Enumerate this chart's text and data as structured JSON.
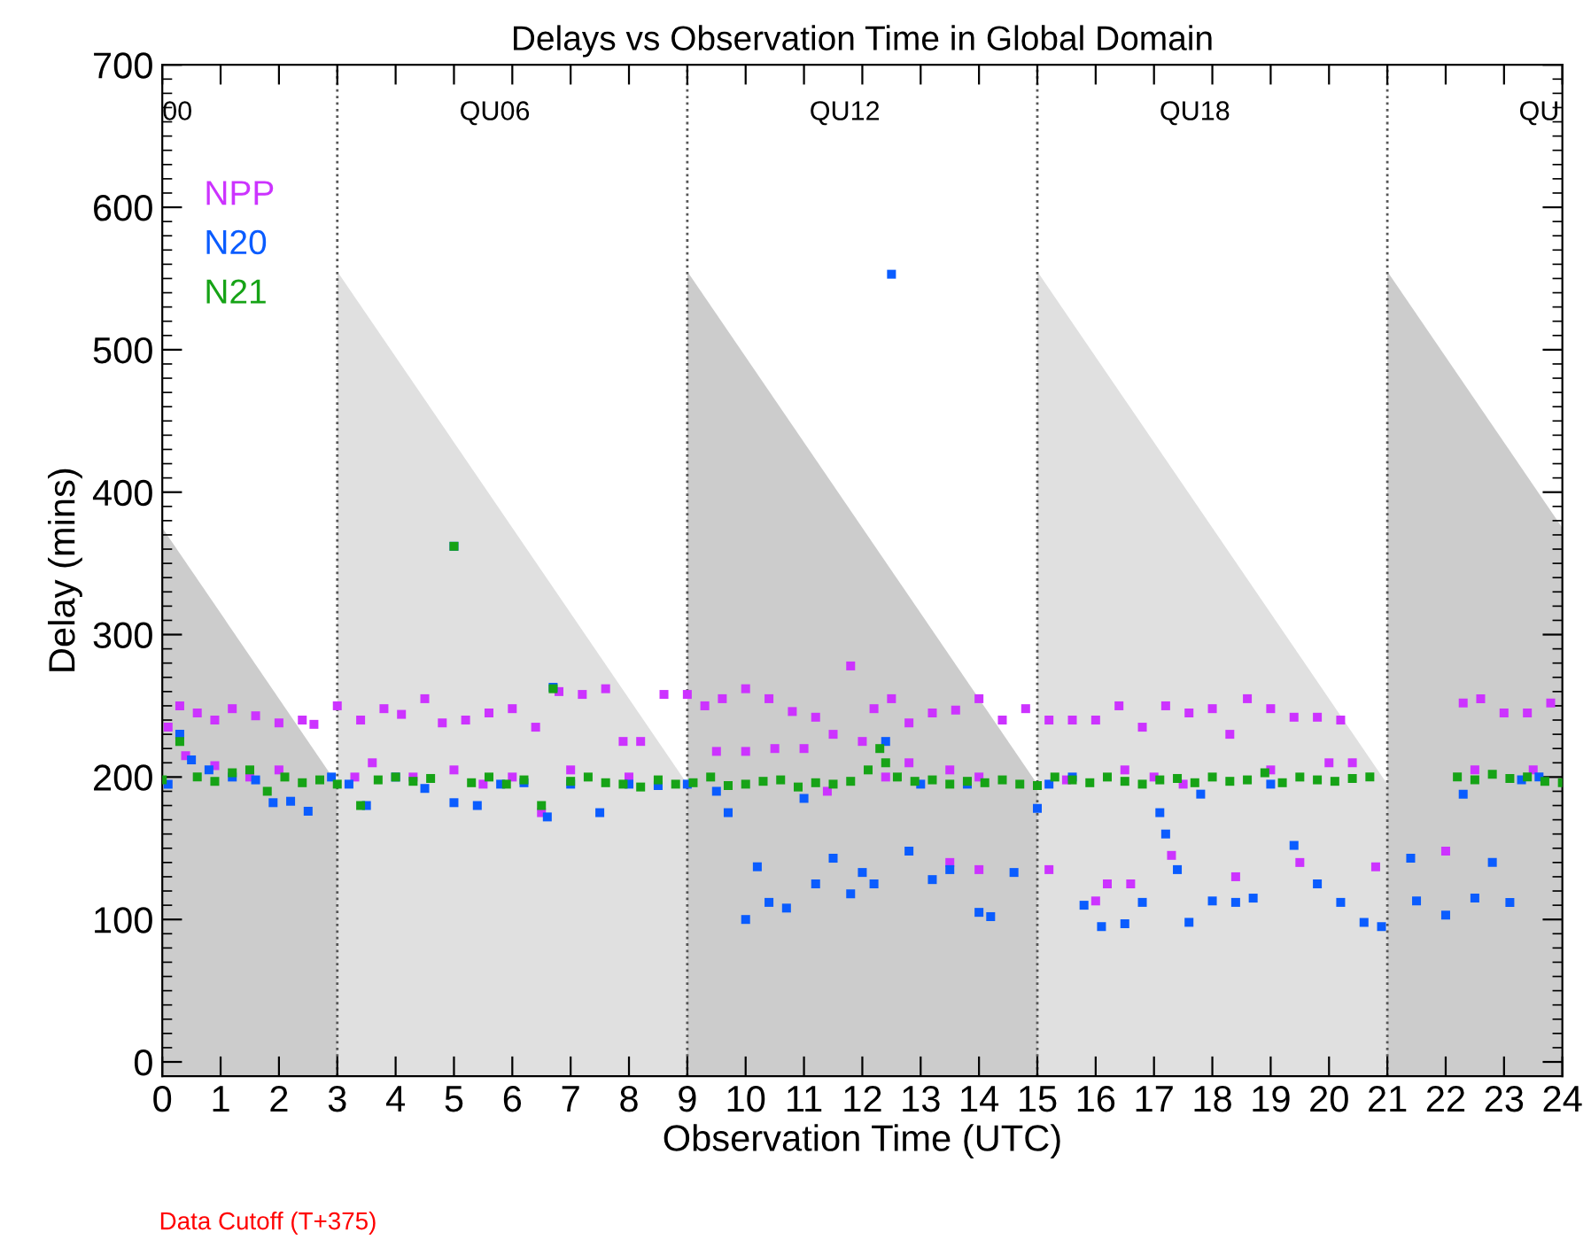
{
  "chart_data": {
    "type": "scatter",
    "title": "Delays vs Observation Time in Global Domain",
    "xlabel": "Observation Time (UTC)",
    "ylabel": "Delay (mins)",
    "xlim": [
      0,
      24
    ],
    "xticks": [
      0,
      1,
      2,
      3,
      4,
      5,
      6,
      7,
      8,
      9,
      10,
      11,
      12,
      13,
      14,
      15,
      16,
      17,
      18,
      19,
      20,
      21,
      22,
      23,
      24
    ],
    "ylim": [
      -10,
      700
    ],
    "yticks": [
      0,
      100,
      200,
      300,
      400,
      500,
      600,
      700
    ],
    "grid": false,
    "legend": "top left",
    "ref_lines": [
      {
        "axis": "x",
        "value": 3,
        "line_style": "dotted",
        "color": "#555555"
      },
      {
        "axis": "x",
        "value": 9,
        "line_style": "dotted",
        "color": "#555555"
      },
      {
        "axis": "x",
        "value": 15,
        "line_style": "dotted",
        "color": "#555555"
      },
      {
        "axis": "x",
        "value": 21,
        "line_style": "dotted",
        "color": "#555555"
      }
    ],
    "annotations": [
      "00",
      "QU06",
      "QU12",
      "QU18",
      "QU",
      "Data Cutoff (T+375)"
    ],
    "series": [
      {
        "name": "NPP",
        "marker": "square",
        "color": "#cc33ff",
        "x": [
          0.1,
          0.3,
          0.6,
          0.9,
          1.2,
          1.6,
          2.0,
          2.4,
          2.6,
          3.0,
          3.4,
          3.8,
          4.1,
          4.5,
          4.8,
          5.2,
          5.6,
          6.0,
          6.4,
          6.8,
          7.2,
          7.6,
          7.9,
          8.2,
          8.6,
          9.0,
          9.3,
          9.6,
          10.0,
          10.4,
          10.8,
          11.2,
          11.5,
          11.8,
          12.2,
          12.5,
          12.8,
          13.2,
          13.6,
          14.0,
          14.4,
          14.8,
          15.2,
          15.6,
          16.0,
          16.4,
          16.8,
          17.2,
          17.6,
          18.0,
          18.3,
          18.6,
          19.0,
          19.4,
          19.8,
          20.2,
          22.3,
          22.6,
          23.0,
          23.4,
          23.8,
          0.4,
          0.9,
          1.5,
          2.0,
          3.3,
          3.6,
          4.3,
          5.0,
          5.5,
          6.0,
          6.5,
          7.0,
          8.0,
          9.5,
          10.0,
          10.5,
          11.0,
          11.4,
          12.0,
          12.4,
          12.8,
          13.5,
          14.0,
          15.5,
          16.5,
          17.0,
          17.5,
          19.0,
          20.0,
          20.4,
          22.5,
          23.5,
          13.5,
          14.0,
          15.2,
          16.2,
          16.6,
          17.3,
          18.4,
          19.5,
          20.8,
          22.0,
          16.0
        ],
        "values": [
          235,
          250,
          245,
          240,
          248,
          243,
          238,
          240,
          237,
          250,
          240,
          248,
          244,
          255,
          238,
          240,
          245,
          248,
          235,
          260,
          258,
          262,
          225,
          225,
          258,
          258,
          250,
          255,
          262,
          255,
          246,
          242,
          230,
          278,
          248,
          255,
          238,
          245,
          247,
          255,
          240,
          248,
          240,
          240,
          240,
          250,
          235,
          250,
          245,
          248,
          230,
          255,
          248,
          242,
          242,
          240,
          252,
          255,
          245,
          245,
          252,
          215,
          208,
          200,
          205,
          200,
          210,
          200,
          205,
          195,
          200,
          175,
          205,
          200,
          218,
          218,
          220,
          220,
          190,
          225,
          200,
          210,
          205,
          200,
          198,
          205,
          200,
          195,
          205,
          210,
          210,
          205,
          205,
          140,
          135,
          135,
          125,
          125,
          145,
          130,
          140,
          137,
          148,
          113
        ]
      },
      {
        "name": "N20",
        "marker": "square",
        "color": "#0a5cff",
        "x": [
          0.1,
          0.3,
          0.5,
          0.8,
          1.2,
          1.6,
          1.9,
          2.2,
          2.5,
          2.9,
          3.2,
          3.5,
          4.0,
          4.5,
          5.0,
          5.0,
          5.4,
          5.8,
          6.2,
          6.6,
          6.7,
          7.0,
          7.5,
          8.0,
          8.5,
          9.0,
          9.5,
          9.7,
          10.0,
          10.2,
          10.4,
          10.7,
          11.0,
          11.2,
          11.5,
          11.8,
          12.0,
          12.2,
          12.4,
          12.5,
          12.8,
          13.0,
          13.2,
          13.5,
          13.8,
          14.0,
          14.2,
          14.6,
          15.0,
          15.2,
          15.6,
          15.8,
          16.1,
          16.5,
          16.8,
          17.1,
          17.2,
          17.4,
          17.6,
          17.8,
          18.0,
          18.4,
          18.7,
          19.0,
          19.4,
          19.8,
          20.2,
          20.6,
          20.9,
          21.4,
          21.5,
          22.0,
          22.3,
          22.5,
          22.8,
          23.1,
          23.3,
          23.6
        ],
        "values": [
          195,
          230,
          212,
          205,
          200,
          198,
          182,
          183,
          176,
          200,
          195,
          180,
          200,
          192,
          182,
          362,
          180,
          195,
          196,
          172,
          263,
          195,
          175,
          195,
          194,
          195,
          190,
          175,
          100,
          137,
          112,
          108,
          185,
          125,
          143,
          118,
          133,
          125,
          225,
          553,
          148,
          195,
          128,
          135,
          195,
          105,
          102,
          133,
          178,
          195,
          200,
          110,
          95,
          97,
          112,
          175,
          160,
          135,
          98,
          188,
          113,
          112,
          115,
          195,
          152,
          125,
          112,
          98,
          95,
          143,
          113,
          103,
          188,
          115,
          140,
          112,
          198,
          200
        ]
      },
      {
        "name": "N21",
        "marker": "square",
        "color": "#16a316",
        "x": [
          0.0,
          0.3,
          0.6,
          0.9,
          1.2,
          1.5,
          1.8,
          2.1,
          2.4,
          2.7,
          3.0,
          3.4,
          3.7,
          4.0,
          4.3,
          4.6,
          5.0,
          5.3,
          5.6,
          5.9,
          6.2,
          6.5,
          6.7,
          7.0,
          7.3,
          7.6,
          7.9,
          8.2,
          8.5,
          8.8,
          9.1,
          9.4,
          9.7,
          10.0,
          10.3,
          10.6,
          10.9,
          11.2,
          11.5,
          11.8,
          12.1,
          12.3,
          12.4,
          12.6,
          12.9,
          13.2,
          13.5,
          13.8,
          14.1,
          14.4,
          14.7,
          15.0,
          15.3,
          15.6,
          15.9,
          16.2,
          16.5,
          16.8,
          17.1,
          17.4,
          17.7,
          18.0,
          18.3,
          18.6,
          18.9,
          19.2,
          19.5,
          19.8,
          20.1,
          20.4,
          20.7,
          22.2,
          22.5,
          22.8,
          23.1,
          23.4,
          23.7,
          24.0
        ],
        "values": [
          198,
          225,
          200,
          197,
          203,
          205,
          190,
          200,
          196,
          198,
          195,
          180,
          198,
          200,
          197,
          199,
          362,
          196,
          200,
          195,
          198,
          180,
          262,
          197,
          200,
          196,
          195,
          193,
          198,
          195,
          196,
          200,
          194,
          195,
          197,
          198,
          193,
          196,
          195,
          197,
          205,
          220,
          210,
          200,
          197,
          198,
          195,
          197,
          196,
          198,
          195,
          194,
          200,
          198,
          196,
          200,
          197,
          195,
          198,
          199,
          196,
          200,
          197,
          198,
          203,
          196,
          200,
          198,
          197,
          199,
          200,
          200,
          198,
          202,
          199,
          200,
          197,
          196
        ]
      }
    ]
  }
}
